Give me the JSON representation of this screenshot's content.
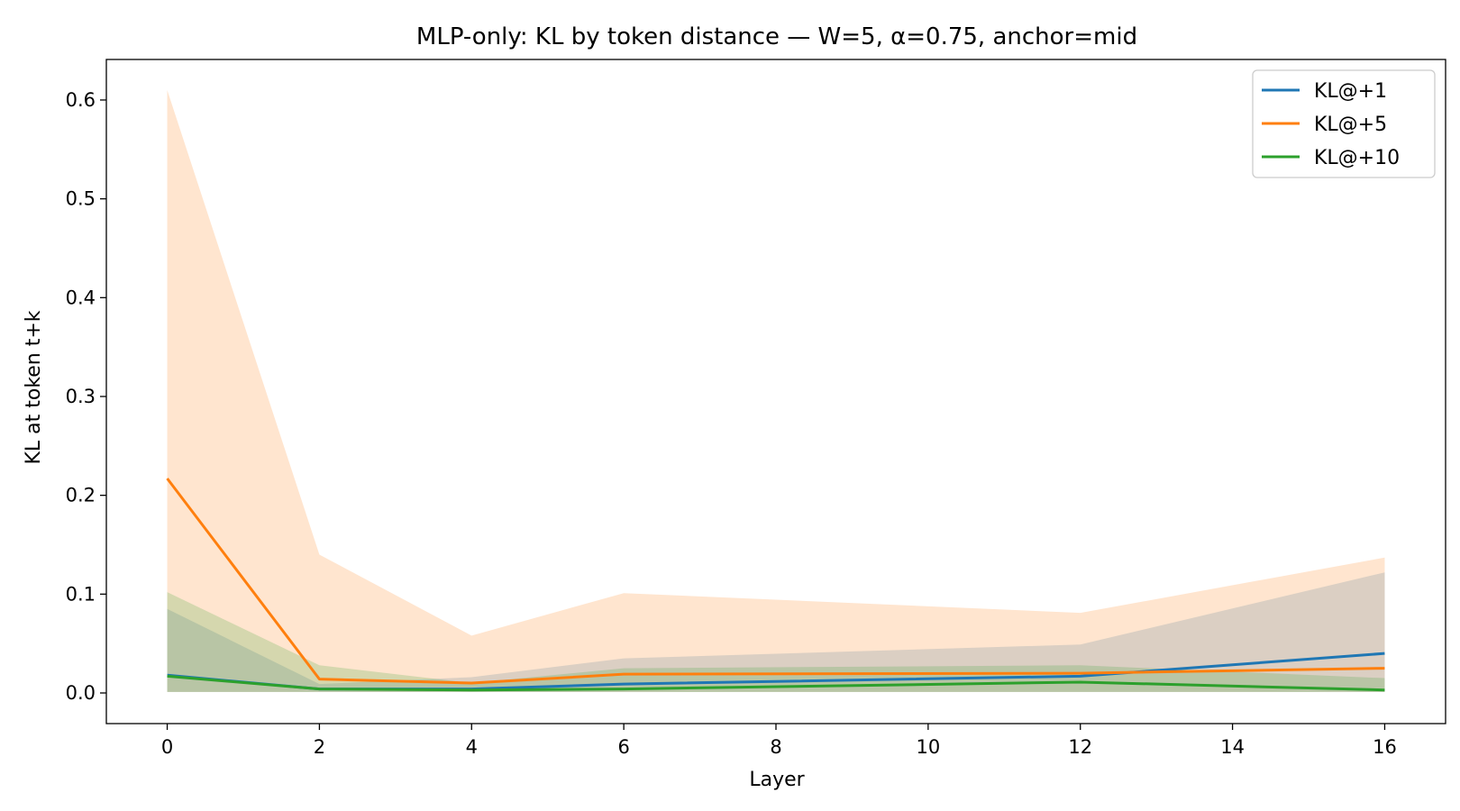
{
  "chart_data": {
    "type": "line",
    "title": "MLP-only: KL by token distance — W=5, α=0.75, anchor=mid",
    "xlabel": "Layer",
    "ylabel": "KL at token t+k",
    "x": [
      0,
      2,
      4,
      6,
      12,
      16
    ],
    "xlim": [
      -0.8,
      16.8
    ],
    "ylim": [
      -0.031,
      0.641
    ],
    "xticks": [
      0,
      2,
      4,
      6,
      8,
      10,
      12,
      14,
      16
    ],
    "xtick_labels": [
      "0",
      "2",
      "4",
      "6",
      "8",
      "10",
      "12",
      "14",
      "16"
    ],
    "yticks": [
      0.0,
      0.1,
      0.2,
      0.3,
      0.4,
      0.5,
      0.6
    ],
    "ytick_labels": [
      "0.0",
      "0.1",
      "0.2",
      "0.3",
      "0.4",
      "0.5",
      "0.6"
    ],
    "grid": false,
    "legend_position": "top-right",
    "series": [
      {
        "name": "KL@+1",
        "color": "#1f77b4",
        "values": [
          0.018,
          0.004,
          0.004,
          0.009,
          0.017,
          0.04
        ],
        "band_lower": [
          0.001,
          0.001,
          0.001,
          0.001,
          0.001,
          0.001
        ],
        "band_upper": [
          0.085,
          0.009,
          0.016,
          0.035,
          0.049,
          0.122
        ]
      },
      {
        "name": "KL@+5",
        "color": "#ff7f0e",
        "values": [
          0.217,
          0.014,
          0.01,
          0.019,
          0.02,
          0.025
        ],
        "band_lower": [
          0.001,
          0.001,
          0.001,
          0.001,
          0.001,
          0.001
        ],
        "band_upper": [
          0.61,
          0.14,
          0.058,
          0.101,
          0.081,
          0.137
        ]
      },
      {
        "name": "KL@+10",
        "color": "#2ca02c",
        "values": [
          0.017,
          0.004,
          0.003,
          0.004,
          0.011,
          0.003
        ],
        "band_lower": [
          0.001,
          0.001,
          0.001,
          0.001,
          0.001,
          0.001
        ],
        "band_upper": [
          0.102,
          0.028,
          0.01,
          0.025,
          0.028,
          0.015
        ]
      }
    ]
  }
}
